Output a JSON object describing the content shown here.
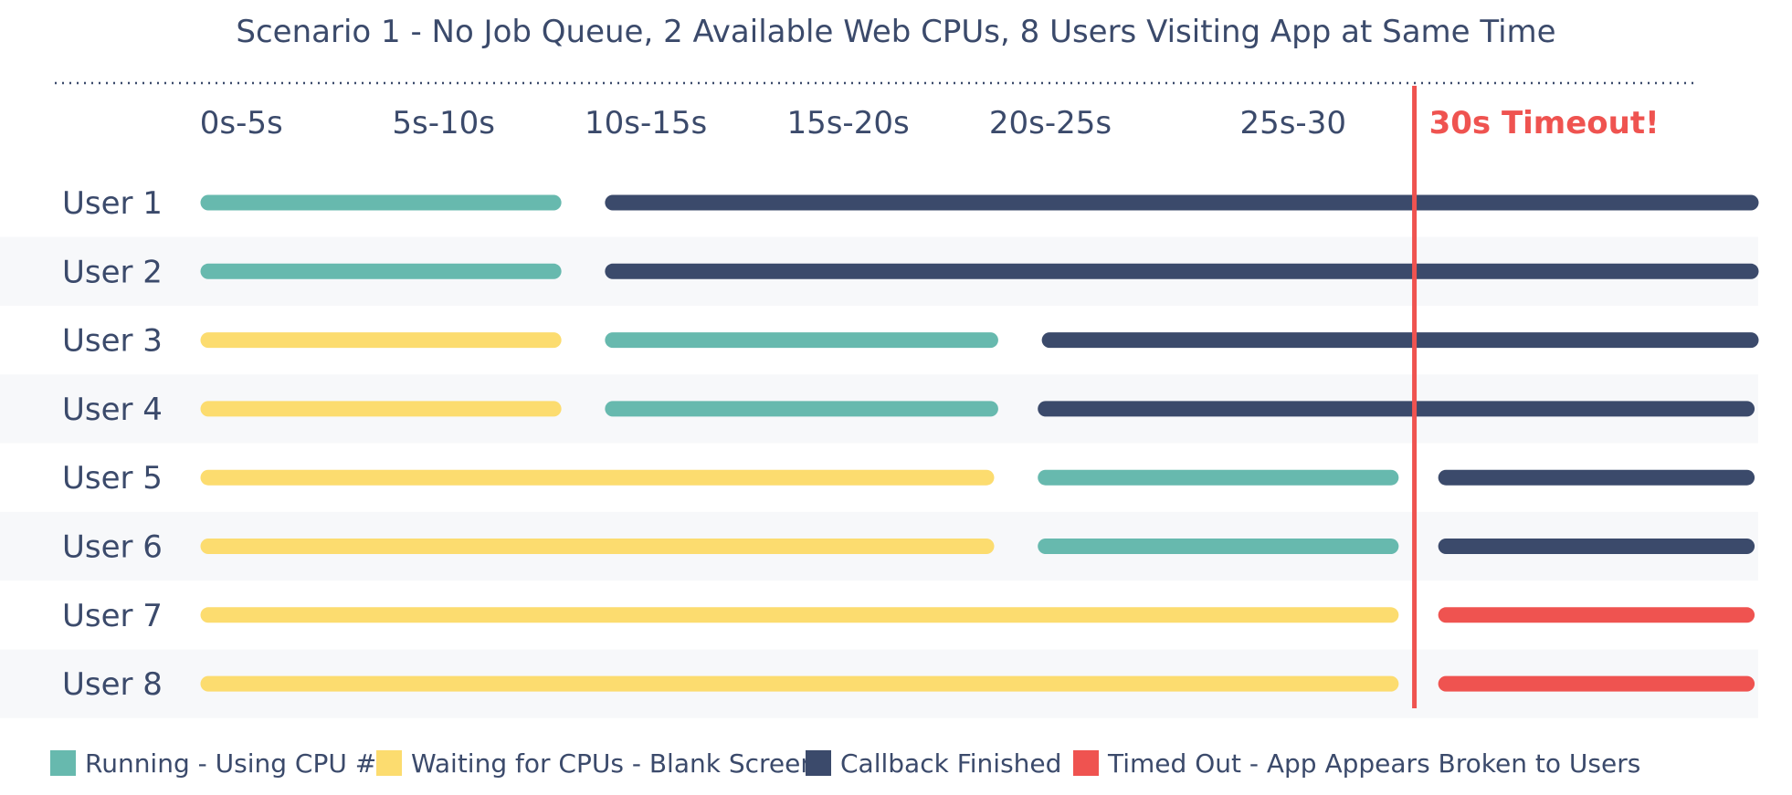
{
  "chart_data": {
    "type": "gantt",
    "subtitle": "Scenario 1 - No Job Queue, 2 Available Web CPUs, 8 Users Visiting App at Same Time",
    "x_range_seconds": [
      0,
      38.5
    ],
    "ticks": [
      {
        "label": "0s-5s",
        "at": 1
      },
      {
        "label": "5s-10s",
        "at": 6
      },
      {
        "label": "10s-15s",
        "at": 11
      },
      {
        "label": "15s-20s",
        "at": 16
      },
      {
        "label": "20s-25s",
        "at": 21
      },
      {
        "label": "25s-30",
        "at": 27
      }
    ],
    "timeout": {
      "label": "30s Timeout!",
      "at": 30
    },
    "colors": {
      "running": "#67b9ae",
      "waiting": "#fcdc6f",
      "finished": "#3b4a6b",
      "timedout": "#ef5350",
      "timeout_line": "#ef5350",
      "stripe": "#f7f8fa"
    },
    "rows": [
      {
        "label": "User 1",
        "segments": [
          {
            "state": "running",
            "start": 0,
            "end": 8.9
          },
          {
            "state": "finished",
            "start": 10,
            "end": 38.5
          }
        ]
      },
      {
        "label": "User 2",
        "segments": [
          {
            "state": "running",
            "start": 0,
            "end": 8.9
          },
          {
            "state": "finished",
            "start": 10,
            "end": 38.5
          }
        ]
      },
      {
        "label": "User 3",
        "segments": [
          {
            "state": "waiting",
            "start": 0,
            "end": 8.9
          },
          {
            "state": "running",
            "start": 10,
            "end": 19.7
          },
          {
            "state": "finished",
            "start": 20.8,
            "end": 38.5
          }
        ]
      },
      {
        "label": "User 4",
        "segments": [
          {
            "state": "waiting",
            "start": 0,
            "end": 8.9
          },
          {
            "state": "running",
            "start": 10,
            "end": 19.7
          },
          {
            "state": "finished",
            "start": 20.7,
            "end": 38.4
          }
        ]
      },
      {
        "label": "User 5",
        "segments": [
          {
            "state": "waiting",
            "start": 0,
            "end": 19.6
          },
          {
            "state": "running",
            "start": 20.7,
            "end": 29.6
          },
          {
            "state": "finished",
            "start": 30.6,
            "end": 38.4
          }
        ]
      },
      {
        "label": "User 6",
        "segments": [
          {
            "state": "waiting",
            "start": 0,
            "end": 19.6
          },
          {
            "state": "running",
            "start": 20.7,
            "end": 29.6
          },
          {
            "state": "finished",
            "start": 30.6,
            "end": 38.4
          }
        ]
      },
      {
        "label": "User 7",
        "segments": [
          {
            "state": "waiting",
            "start": 0,
            "end": 29.6
          },
          {
            "state": "timedout",
            "start": 30.6,
            "end": 38.4
          }
        ]
      },
      {
        "label": "User 8",
        "segments": [
          {
            "state": "waiting",
            "start": 0,
            "end": 29.6
          },
          {
            "state": "timedout",
            "start": 30.6,
            "end": 38.4
          }
        ]
      }
    ],
    "legend": [
      {
        "state": "running",
        "label": "Running - Using CPU #"
      },
      {
        "state": "waiting",
        "label": "Waiting for CPUs - Blank Screen"
      },
      {
        "state": "finished",
        "label": "Callback Finished"
      },
      {
        "state": "timedout",
        "label": "Timed Out - App Appears Broken to Users"
      }
    ]
  }
}
